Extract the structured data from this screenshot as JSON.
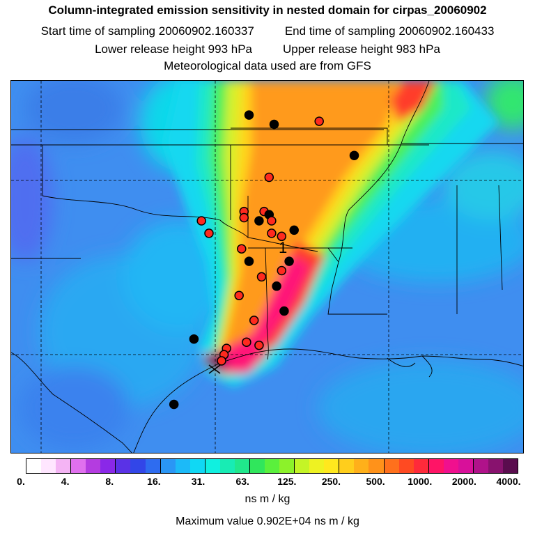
{
  "title": "Column-integrated emission sensitivity in nested domain for cirpas_20060902",
  "sampling": {
    "start_label": "Start time of sampling",
    "start_value": "20060902.160337",
    "end_label": "End time of sampling",
    "end_value": "20060902.160433"
  },
  "release": {
    "lower_label": "Lower release height",
    "lower_value": "993 hPa",
    "upper_label": "Upper release height",
    "upper_value": "983 hPa"
  },
  "met_note": "Meteorological data used are from GFS",
  "map": {
    "label": "1",
    "background_color": "#3f8ef0",
    "plume_colors": [
      "#14d8f0",
      "#1ee8c8",
      "#4aef5a",
      "#d8f02a",
      "#ffd61e",
      "#ff9a1a",
      "#ff3c2a",
      "#ff1478",
      "#7a1a5a"
    ],
    "release_marker": "x-icon",
    "markers": [
      {
        "lat": 38.9,
        "lon": -95.0,
        "type": "black"
      },
      {
        "lat": 38.6,
        "lon": -94.0,
        "type": "black"
      },
      {
        "lat": 38.7,
        "lon": -92.2,
        "type": "red"
      },
      {
        "lat": 37.6,
        "lon": -90.8,
        "type": "black"
      },
      {
        "lat": 36.9,
        "lon": -94.2,
        "type": "red"
      },
      {
        "lat": 35.8,
        "lon": -95.2,
        "type": "red"
      },
      {
        "lat": 35.6,
        "lon": -95.2,
        "type": "red"
      },
      {
        "lat": 35.8,
        "lon": -94.4,
        "type": "red"
      },
      {
        "lat": 35.7,
        "lon": -94.2,
        "type": "black"
      },
      {
        "lat": 35.5,
        "lon": -94.6,
        "type": "black"
      },
      {
        "lat": 35.5,
        "lon": -94.1,
        "type": "red"
      },
      {
        "lat": 35.2,
        "lon": -93.2,
        "type": "black"
      },
      {
        "lat": 35.5,
        "lon": -96.9,
        "type": "red"
      },
      {
        "lat": 35.1,
        "lon": -96.6,
        "type": "red"
      },
      {
        "lat": 35.1,
        "lon": -94.1,
        "type": "red"
      },
      {
        "lat": 35.0,
        "lon": -93.7,
        "type": "red"
      },
      {
        "lat": 34.6,
        "lon": -95.3,
        "type": "red"
      },
      {
        "lat": 34.2,
        "lon": -95.0,
        "type": "black"
      },
      {
        "lat": 34.2,
        "lon": -93.4,
        "type": "black"
      },
      {
        "lat": 33.9,
        "lon": -93.7,
        "type": "red"
      },
      {
        "lat": 33.7,
        "lon": -94.5,
        "type": "red"
      },
      {
        "lat": 33.4,
        "lon": -93.9,
        "type": "black"
      },
      {
        "lat": 33.1,
        "lon": -95.4,
        "type": "red"
      },
      {
        "lat": 32.6,
        "lon": -93.6,
        "type": "black"
      },
      {
        "lat": 32.3,
        "lon": -94.8,
        "type": "red"
      },
      {
        "lat": 31.7,
        "lon": -97.2,
        "type": "black"
      },
      {
        "lat": 31.6,
        "lon": -95.1,
        "type": "red"
      },
      {
        "lat": 31.5,
        "lon": -94.6,
        "type": "red"
      },
      {
        "lat": 31.4,
        "lon": -95.9,
        "type": "red"
      },
      {
        "lat": 31.2,
        "lon": -96.0,
        "type": "red"
      },
      {
        "lat": 31.0,
        "lon": -96.1,
        "type": "red"
      },
      {
        "lat": 29.6,
        "lon": -98.0,
        "type": "black"
      }
    ]
  },
  "colorbar": {
    "colors": [
      "#ffffff",
      "#ffe6ff",
      "#f4b4f4",
      "#e070ee",
      "#b43ce0",
      "#8a28e8",
      "#5a32e6",
      "#3246e8",
      "#2e6cf0",
      "#2a96f5",
      "#1cbaf8",
      "#10d8f4",
      "#10f0e0",
      "#18ecb4",
      "#20e88c",
      "#30e65c",
      "#5af03c",
      "#8cf22a",
      "#c4f426",
      "#eef222",
      "#ffe81e",
      "#ffce1c",
      "#ffb01a",
      "#ff921a",
      "#ff701c",
      "#ff4a22",
      "#ff2a3a",
      "#ff1466",
      "#f0108e",
      "#d8109a",
      "#b0128a",
      "#88126e",
      "#5a0c4e"
    ],
    "labels": [
      "0.",
      "4.",
      "8.",
      "16.",
      "31.",
      "63.",
      "125.",
      "250.",
      "500.",
      "1000.",
      "2000.",
      "4000."
    ]
  },
  "units": "ns m / kg",
  "max_value": "Maximum value  0.902E+04 ns m / kg"
}
